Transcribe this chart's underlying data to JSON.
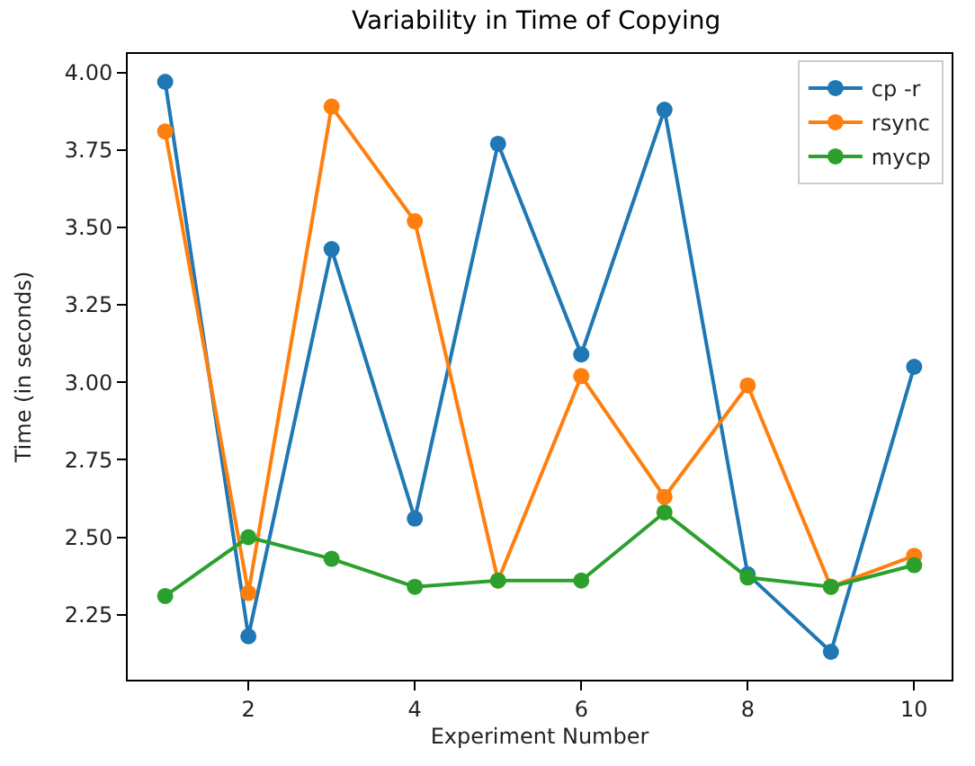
{
  "chart_data": {
    "type": "line",
    "title": "Variability in Time of Copying",
    "xlabel": "Experiment Number",
    "ylabel": "Time (in seconds)",
    "x": [
      1,
      2,
      3,
      4,
      5,
      6,
      7,
      8,
      9,
      10
    ],
    "series": [
      {
        "name": "cp -r",
        "color": "#1f77b4",
        "values": [
          3.97,
          2.18,
          3.43,
          2.56,
          3.77,
          3.09,
          3.88,
          2.38,
          2.13,
          3.05
        ]
      },
      {
        "name": "rsync",
        "color": "#ff7f0e",
        "values": [
          3.81,
          2.32,
          3.89,
          3.52,
          2.36,
          3.02,
          2.63,
          2.99,
          2.34,
          2.44
        ]
      },
      {
        "name": "mycp",
        "color": "#2ca02c",
        "values": [
          2.31,
          2.5,
          2.43,
          2.34,
          2.36,
          2.36,
          2.58,
          2.37,
          2.34,
          2.41
        ]
      }
    ],
    "xlim": [
      0.55,
      10.45
    ],
    "xticks": [
      2,
      4,
      6,
      8,
      10
    ],
    "ylim": [
      2.04,
      4.06
    ],
    "yticks": [
      {
        "value": 2.25,
        "label": "2.25"
      },
      {
        "value": 2.5,
        "label": "2.50"
      },
      {
        "value": 2.75,
        "label": "2.75"
      },
      {
        "value": 3,
        "label": "3.00"
      },
      {
        "value": 3.25,
        "label": "3.25"
      },
      {
        "value": 3.5,
        "label": "3.50"
      },
      {
        "value": 3.75,
        "label": "3.75"
      },
      {
        "value": 4,
        "label": "4.00"
      }
    ],
    "legend": "top right",
    "marker": "circle",
    "line_style": "solid"
  }
}
